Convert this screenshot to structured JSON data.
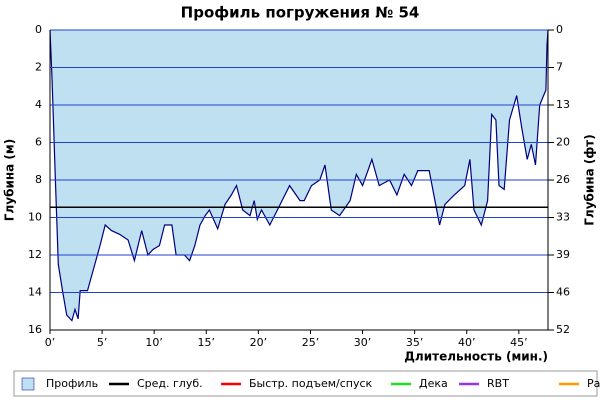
{
  "chart_data": {
    "type": "area",
    "title": "Профиль погружения № 54",
    "xlabel": "Длительность (мин.)",
    "ylabel": "Глубина (м)",
    "y2label": "Глубина (фт)",
    "xlim": [
      0,
      47.8
    ],
    "xticks": [
      {
        "value": 0,
        "label": "0’"
      },
      {
        "value": 5,
        "label": "5’"
      },
      {
        "value": 10,
        "label": "10’"
      },
      {
        "value": 15,
        "label": "15’"
      },
      {
        "value": 20,
        "label": "20’"
      },
      {
        "value": 25,
        "label": "25’"
      },
      {
        "value": 30,
        "label": "30’"
      },
      {
        "value": 35,
        "label": "35’"
      },
      {
        "value": 40,
        "label": "40’"
      },
      {
        "value": 45,
        "label": "45’"
      }
    ],
    "ylim": [
      0,
      16
    ],
    "yticks": [
      0,
      2,
      4,
      6,
      8,
      10,
      12,
      14,
      16
    ],
    "y2lim": [
      0,
      52.49
    ],
    "y2ticks": [
      0,
      {
        "value": 6.56,
        "label": "7"
      },
      {
        "value": 13.12,
        "label": "13"
      },
      {
        "value": 19.69,
        "label": "20"
      },
      {
        "value": 26.25,
        "label": "26"
      },
      {
        "value": 32.81,
        "label": "33"
      },
      {
        "value": 39.37,
        "label": "39"
      },
      {
        "value": 45.93,
        "label": "46"
      },
      {
        "value": 52.49,
        "label": "52"
      }
    ],
    "inverted_y": true,
    "grid": true,
    "grid_color": "#2040d0",
    "series": [
      {
        "name": "Профиль",
        "color": "#bfe0f0",
        "line_color": "#000080",
        "x": [
          0,
          0.2,
          0.5,
          0.8,
          1.2,
          1.6,
          2.1,
          2.4,
          2.7,
          2.9,
          3.6,
          4.3,
          4.8,
          5.3,
          5.9,
          6.7,
          7.5,
          8.1,
          8.8,
          9.4,
          9.9,
          10.5,
          11.0,
          11.7,
          12.1,
          12.9,
          13.4,
          13.9,
          14.4,
          14.9,
          15.3,
          16.1,
          16.8,
          17.4,
          17.9,
          18.5,
          19.2,
          19.6,
          19.9,
          20.3,
          21.1,
          22.1,
          23.0,
          24.0,
          24.4,
          25.1,
          25.9,
          26.4,
          27.0,
          27.8,
          28.8,
          29.4,
          30.0,
          30.9,
          31.6,
          32.6,
          33.3,
          34.0,
          34.7,
          35.3,
          36.4,
          37.4,
          37.9,
          38.8,
          39.8,
          40.3,
          40.7,
          41.4,
          42.0,
          42.4,
          42.8,
          43.1,
          43.6,
          44.1,
          44.8,
          45.3,
          45.8,
          46.2,
          46.6,
          47.0,
          47.6,
          47.7,
          47.8
        ],
        "values": [
          0,
          2.7,
          7.7,
          12.5,
          13.9,
          15.2,
          15.5,
          14.9,
          15.4,
          13.9,
          13.9,
          12.5,
          11.5,
          10.4,
          10.7,
          10.9,
          11.2,
          12.3,
          10.7,
          12.0,
          11.7,
          11.5,
          10.4,
          10.4,
          12.0,
          12.0,
          12.3,
          11.5,
          10.4,
          9.9,
          9.6,
          10.6,
          9.3,
          8.8,
          8.3,
          9.6,
          9.9,
          9.1,
          10.1,
          9.6,
          10.4,
          9.3,
          8.3,
          9.1,
          9.1,
          8.3,
          8.0,
          7.2,
          9.6,
          9.9,
          9.1,
          7.7,
          8.3,
          6.9,
          8.3,
          8.0,
          8.8,
          7.7,
          8.3,
          7.5,
          7.5,
          10.4,
          9.3,
          8.8,
          8.3,
          6.9,
          9.6,
          10.4,
          9.1,
          4.5,
          4.8,
          8.3,
          8.5,
          4.8,
          3.5,
          5.3,
          6.9,
          6.1,
          7.2,
          4.0,
          3.2,
          0.8,
          0
        ]
      },
      {
        "name": "Сред. глуб.",
        "color": "#000000",
        "x": [
          0,
          47.8
        ],
        "values": [
          9.45,
          9.45
        ]
      },
      {
        "name": "Быстр. подъем/спуск",
        "color": "#ff0000",
        "x": [],
        "values": []
      },
      {
        "name": "Дека",
        "color": "#22dd22",
        "x": [],
        "values": []
      },
      {
        "name": "RBT",
        "color": "#9933ee",
        "x": [],
        "values": []
      },
      {
        "name": "Раб.",
        "color": "#ff9900",
        "x": [],
        "values": []
      }
    ]
  }
}
